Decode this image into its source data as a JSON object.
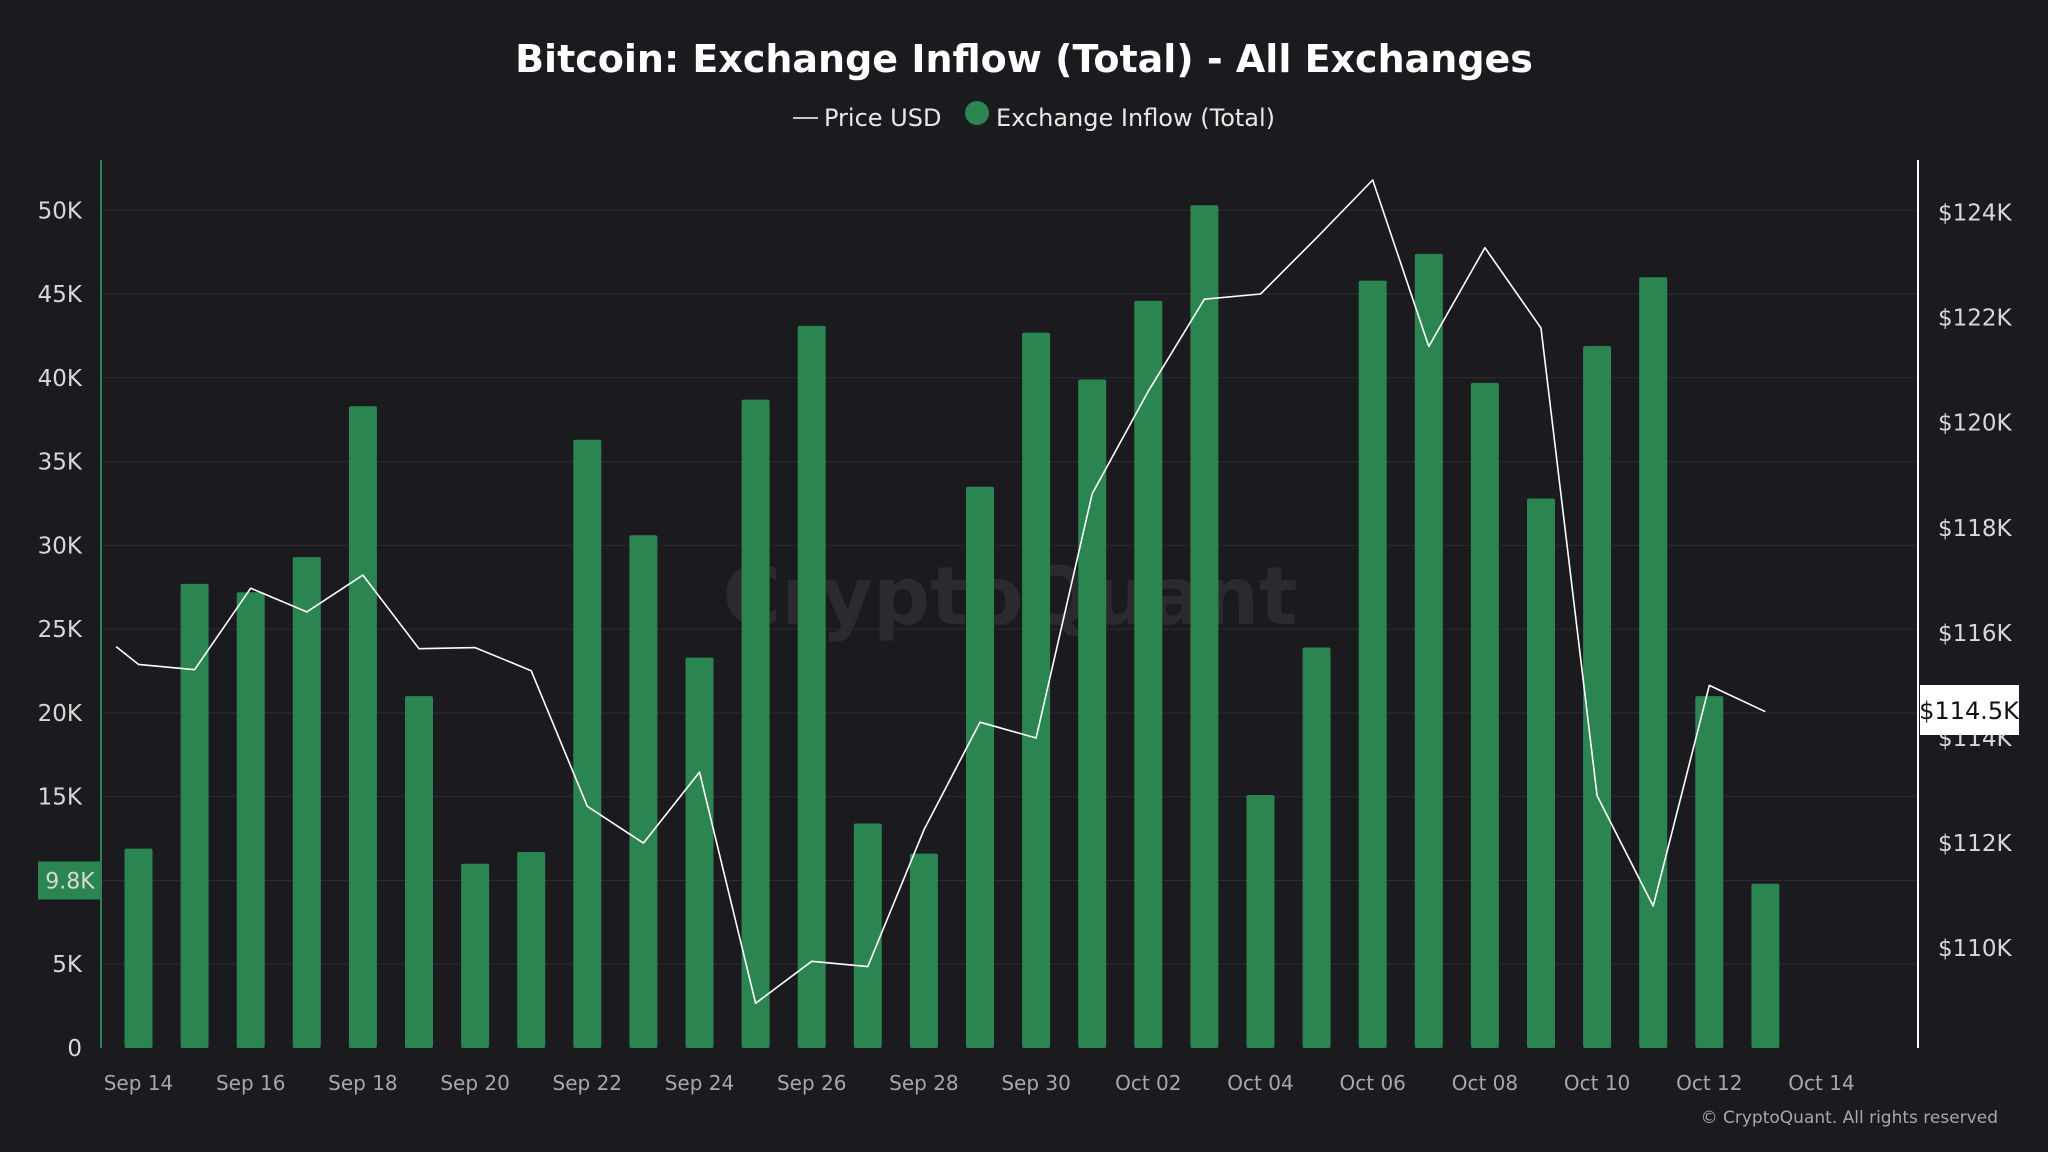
{
  "chart_data": {
    "type": "bar",
    "title": "Bitcoin: Exchange Inflow (Total) - All Exchanges",
    "legend": [
      "Price USD",
      "Exchange Inflow (Total)"
    ],
    "watermark": "CryptoQuant",
    "copyright": "© CryptoQuant. All rights reserved",
    "colors": {
      "bar": "#2b8550",
      "line": "#ffffff",
      "background": "#1b1b1f",
      "left_axis": "#2b8550",
      "right_axis": "#ffffff"
    },
    "x_tick_labels": [
      "Sep 14",
      "Sep 16",
      "Sep 18",
      "Sep 20",
      "Sep 22",
      "Sep 24",
      "Sep 26",
      "Sep 28",
      "Sep 30",
      "Oct 02",
      "Oct 04",
      "Oct 06",
      "Oct 08",
      "Oct 10",
      "Oct 12",
      "Oct 14"
    ],
    "y_left": {
      "ticks": [
        0,
        5000,
        10000,
        15000,
        20000,
        25000,
        30000,
        35000,
        40000,
        45000,
        50000
      ],
      "tick_labels": [
        "0",
        "5K",
        "10K",
        "15K",
        "20K",
        "25K",
        "30K",
        "35K",
        "40K",
        "45K",
        "50K"
      ],
      "ylim": [
        0,
        53000
      ]
    },
    "y_right": {
      "ticks": [
        110000,
        112000,
        114000,
        116000,
        118000,
        120000,
        122000,
        124000
      ],
      "tick_labels": [
        "$110K",
        "$112K",
        "$114K",
        "$116K",
        "$118K",
        "$120K",
        "$122K",
        "$124K"
      ],
      "ylim": [
        108100,
        125000
      ]
    },
    "current_inflow_label": "9.8K",
    "current_inflow_value": 9800,
    "current_price_label": "$114.5K",
    "current_price_value": 114500,
    "series": [
      {
        "name": "Exchange Inflow (Total)",
        "type": "bar",
        "dates": [
          "Sep 14",
          "Sep 15",
          "Sep 16",
          "Sep 17",
          "Sep 18",
          "Sep 19",
          "Sep 20",
          "Sep 21",
          "Sep 22",
          "Sep 23",
          "Sep 24",
          "Sep 25",
          "Sep 26",
          "Sep 27",
          "Sep 28",
          "Sep 29",
          "Sep 30",
          "Oct 01",
          "Oct 02",
          "Oct 03",
          "Oct 04",
          "Oct 05",
          "Oct 06",
          "Oct 07",
          "Oct 08",
          "Oct 09",
          "Oct 10",
          "Oct 11",
          "Oct 12",
          "Oct 13"
        ],
        "values": [
          11900,
          27700,
          27200,
          29300,
          38300,
          21000,
          11000,
          11700,
          36300,
          30600,
          23300,
          38700,
          43100,
          13400,
          11600,
          33500,
          42700,
          39900,
          44600,
          50300,
          15100,
          23900,
          45800,
          47400,
          39700,
          32800,
          41900,
          46000,
          21000,
          9800
        ]
      },
      {
        "name": "Price USD",
        "type": "line",
        "x": [
          13.6,
          14,
          15,
          16,
          17,
          18,
          19,
          20,
          21,
          22,
          23,
          24,
          25,
          26,
          27,
          28,
          29,
          30,
          31,
          32,
          33,
          34,
          35,
          36,
          37,
          38,
          39,
          40,
          41,
          42,
          43
        ],
        "values": [
          115740,
          115400,
          115300,
          116850,
          116400,
          117100,
          115700,
          115720,
          115280,
          112700,
          112000,
          113350,
          108950,
          109750,
          109650,
          112250,
          114300,
          114000,
          118650,
          120600,
          122350,
          122450,
          123520,
          124620,
          121450,
          123330,
          121800,
          112900,
          110800,
          115000,
          114500
        ]
      }
    ]
  }
}
